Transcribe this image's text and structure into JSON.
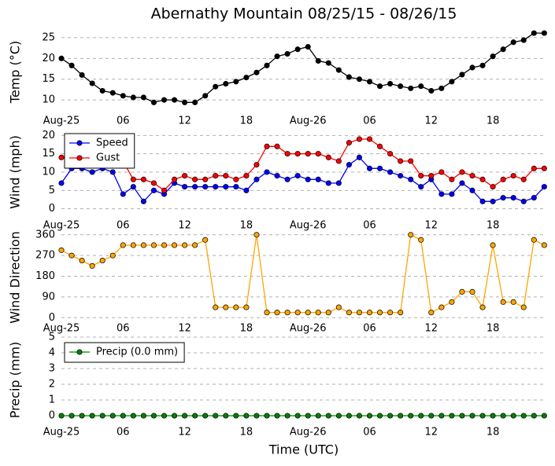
{
  "chart_data": [
    {
      "type": "line",
      "title": "Abernathy Mountain 08/25/15 - 08/26/15",
      "ylabel": "Temp (°C)",
      "categories": [
        "Aug-25",
        null,
        null,
        null,
        null,
        null,
        "06",
        null,
        null,
        null,
        null,
        null,
        "12",
        null,
        null,
        null,
        null,
        null,
        "18",
        null,
        null,
        null,
        null,
        null,
        "Aug-26",
        null,
        null,
        null,
        null,
        null,
        "06",
        null,
        null,
        null,
        null,
        null,
        "12",
        null,
        null,
        null,
        null,
        null,
        "18",
        null,
        null,
        null,
        null,
        null
      ],
      "ylim": [
        7,
        26.5
      ],
      "yticks": [
        10,
        15,
        20,
        25
      ],
      "grid": true,
      "series": [
        {
          "color": "#000000",
          "values": [
            20,
            18.3,
            16,
            14,
            12.2,
            11.7,
            11,
            10.6,
            10.6,
            9.4,
            10,
            10,
            9.4,
            9.4,
            11,
            13.2,
            13.9,
            14.4,
            15.4,
            16.6,
            18.3,
            20.5,
            21.1,
            22.2,
            22.8,
            19.4,
            18.9,
            17.2,
            15.5,
            15,
            14.4,
            13.3,
            13.9,
            13.3,
            12.8,
            13.3,
            12.2,
            12.8,
            14.4,
            16.1,
            17.8,
            18.3,
            20.5,
            22.2,
            23.9,
            24.4,
            26.1,
            26.1
          ]
        }
      ]
    },
    {
      "type": "line",
      "ylabel": "Wind (mph)",
      "categories": [
        "Aug-25",
        null,
        null,
        null,
        null,
        null,
        "06",
        null,
        null,
        null,
        null,
        null,
        "12",
        null,
        null,
        null,
        null,
        null,
        "18",
        null,
        null,
        null,
        null,
        null,
        "Aug-26",
        null,
        null,
        null,
        null,
        null,
        "06",
        null,
        null,
        null,
        null,
        null,
        "12",
        null,
        null,
        null,
        null,
        null,
        "18",
        null,
        null,
        null,
        null,
        null
      ],
      "ylim": [
        -2,
        22
      ],
      "yticks": [
        0,
        5,
        10,
        15,
        20
      ],
      "grid": true,
      "legend": "upper left",
      "series": [
        {
          "name": "Speed",
          "color": "#0000ff",
          "values": [
            7,
            11,
            11,
            10,
            11,
            10,
            4,
            6,
            2,
            5,
            4,
            7,
            6,
            6,
            6,
            6,
            6,
            6,
            5,
            8,
            10,
            9,
            8,
            9,
            8,
            8,
            7,
            7,
            12,
            14,
            11,
            11,
            10,
            9,
            8,
            6,
            8,
            4,
            4,
            7,
            5,
            2,
            2,
            3,
            3,
            2,
            3,
            6
          ]
        },
        {
          "name": "Gust",
          "color": "#ff0000",
          "values": [
            14,
            14,
            14,
            14,
            14,
            14,
            13,
            8,
            8,
            7,
            5,
            8,
            9,
            8,
            8,
            9,
            9,
            8,
            9,
            12,
            17,
            17,
            15,
            15,
            15,
            15,
            14,
            13,
            18,
            19,
            19,
            17,
            15,
            13,
            13,
            9,
            9,
            10,
            8,
            10,
            9,
            8,
            6,
            8,
            9,
            8,
            11,
            11
          ]
        }
      ]
    },
    {
      "type": "line",
      "ylabel": "Wind Direction",
      "categories": [
        "Aug-25",
        null,
        null,
        null,
        null,
        null,
        "06",
        null,
        null,
        null,
        null,
        null,
        "12",
        null,
        null,
        null,
        null,
        null,
        "18",
        null,
        null,
        null,
        null,
        null,
        "Aug-26",
        null,
        null,
        null,
        null,
        null,
        "06",
        null,
        null,
        null,
        null,
        null,
        "12",
        null,
        null,
        null,
        null,
        null,
        "18",
        null,
        null,
        null,
        null,
        null
      ],
      "ylim": [
        -40,
        390
      ],
      "yticks": [
        0,
        90,
        180,
        270,
        360
      ],
      "grid": true,
      "series": [
        {
          "color": "#ffa500",
          "values": [
            293,
            270,
            248,
            225,
            248,
            270,
            315,
            315,
            315,
            315,
            315,
            315,
            315,
            315,
            338,
            45,
            45,
            45,
            45,
            360,
            22.5,
            22.5,
            22.5,
            22.5,
            22.5,
            22.5,
            22.5,
            45,
            22.5,
            22.5,
            22.5,
            22.5,
            22.5,
            22.5,
            360,
            338,
            22.5,
            45,
            68,
            112.5,
            112.5,
            45,
            315,
            68,
            68,
            45,
            338,
            315
          ]
        }
      ]
    },
    {
      "type": "line",
      "ylabel": "Precip (mm)",
      "xlabel": "Time (UTC)",
      "categories": [
        "Aug-25",
        null,
        null,
        null,
        null,
        null,
        "06",
        null,
        null,
        null,
        null,
        null,
        "12",
        null,
        null,
        null,
        null,
        null,
        "18",
        null,
        null,
        null,
        null,
        null,
        "Aug-26",
        null,
        null,
        null,
        null,
        null,
        "06",
        null,
        null,
        null,
        null,
        null,
        "12",
        null,
        null,
        null,
        null,
        null,
        "18",
        null,
        null,
        null,
        null,
        null
      ],
      "ylim": [
        -0.45,
        5
      ],
      "yticks": [
        0,
        1,
        2,
        3,
        4,
        5
      ],
      "grid": true,
      "legend": "upper left",
      "series": [
        {
          "name": "Precip (0.0 mm)",
          "color": "#008000",
          "values": [
            0,
            0,
            0,
            0,
            0,
            0,
            0,
            0,
            0,
            0,
            0,
            0,
            0,
            0,
            0,
            0,
            0,
            0,
            0,
            0,
            0,
            0,
            0,
            0,
            0,
            0,
            0,
            0,
            0,
            0,
            0,
            0,
            0,
            0,
            0,
            0,
            0,
            0,
            0,
            0,
            0,
            0,
            0,
            0,
            0,
            0,
            0,
            0
          ]
        }
      ]
    }
  ]
}
